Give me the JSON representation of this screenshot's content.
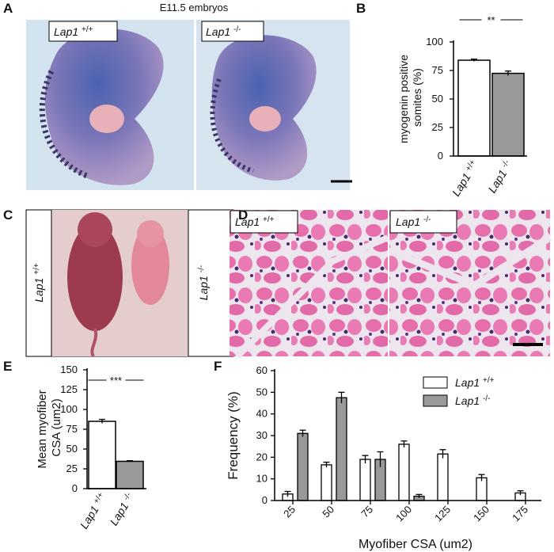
{
  "panel_letters": [
    "A",
    "B",
    "C",
    "D",
    "E",
    "F"
  ],
  "panel_a": {
    "title": "E11.5 embryos",
    "labels": [
      "Lap1 +/+",
      "Lap1 -/-"
    ]
  },
  "panel_c": {
    "labels": [
      "Lap1 +/+",
      "Lap1 -/-"
    ]
  },
  "panel_d": {
    "labels": [
      "Lap1 +/+",
      "Lap1 -/-"
    ]
  },
  "chart_data": [
    {
      "type": "bar",
      "y_label": "myogenin positive somites (%)",
      "annotation": "**",
      "categories": [
        "Lap1 +/+",
        "Lap1 -/-"
      ],
      "values": [
        84,
        72.5
      ],
      "errors": [
        1,
        2
      ],
      "colors": [
        "#ffffff",
        "#999999"
      ],
      "ylim": [
        0,
        100
      ],
      "yticks": [
        0,
        25,
        50,
        75,
        100
      ]
    },
    {
      "type": "bar",
      "y_label": "Mean myofiber CSA (um2)",
      "annotation": "***",
      "categories": [
        "Lap1 +/+",
        "Lap1 -/-"
      ],
      "values": [
        85,
        34.5
      ],
      "errors": [
        2.5,
        0.8
      ],
      "colors": [
        "#ffffff",
        "#999999"
      ],
      "ylim": [
        0,
        150
      ],
      "yticks": [
        0,
        25,
        50,
        75,
        100,
        125,
        150
      ]
    },
    {
      "type": "grouped-bar",
      "y_label": "Frequency (%)",
      "x_label": "Myofiber CSA (um2)",
      "categories": [
        25,
        50,
        75,
        100,
        125,
        150,
        175
      ],
      "series": [
        {
          "name": "Lap1 +/+",
          "color": "#ffffff",
          "values": [
            3,
            16.5,
            19,
            26,
            21.5,
            10.5,
            3.5
          ],
          "errors": [
            1.2,
            1.2,
            1.8,
            1.5,
            2,
            1.5,
            1
          ]
        },
        {
          "name": "Lap1 -/-",
          "color": "#999999",
          "values": [
            31,
            47.5,
            19,
            2,
            null,
            null,
            null
          ],
          "errors": [
            1.5,
            2.5,
            3.5,
            0.8,
            null,
            null,
            null
          ]
        }
      ],
      "ylim": [
        0,
        60
      ],
      "yticks": [
        0,
        10,
        20,
        30,
        40,
        50,
        60
      ],
      "legend": "upper right"
    }
  ]
}
